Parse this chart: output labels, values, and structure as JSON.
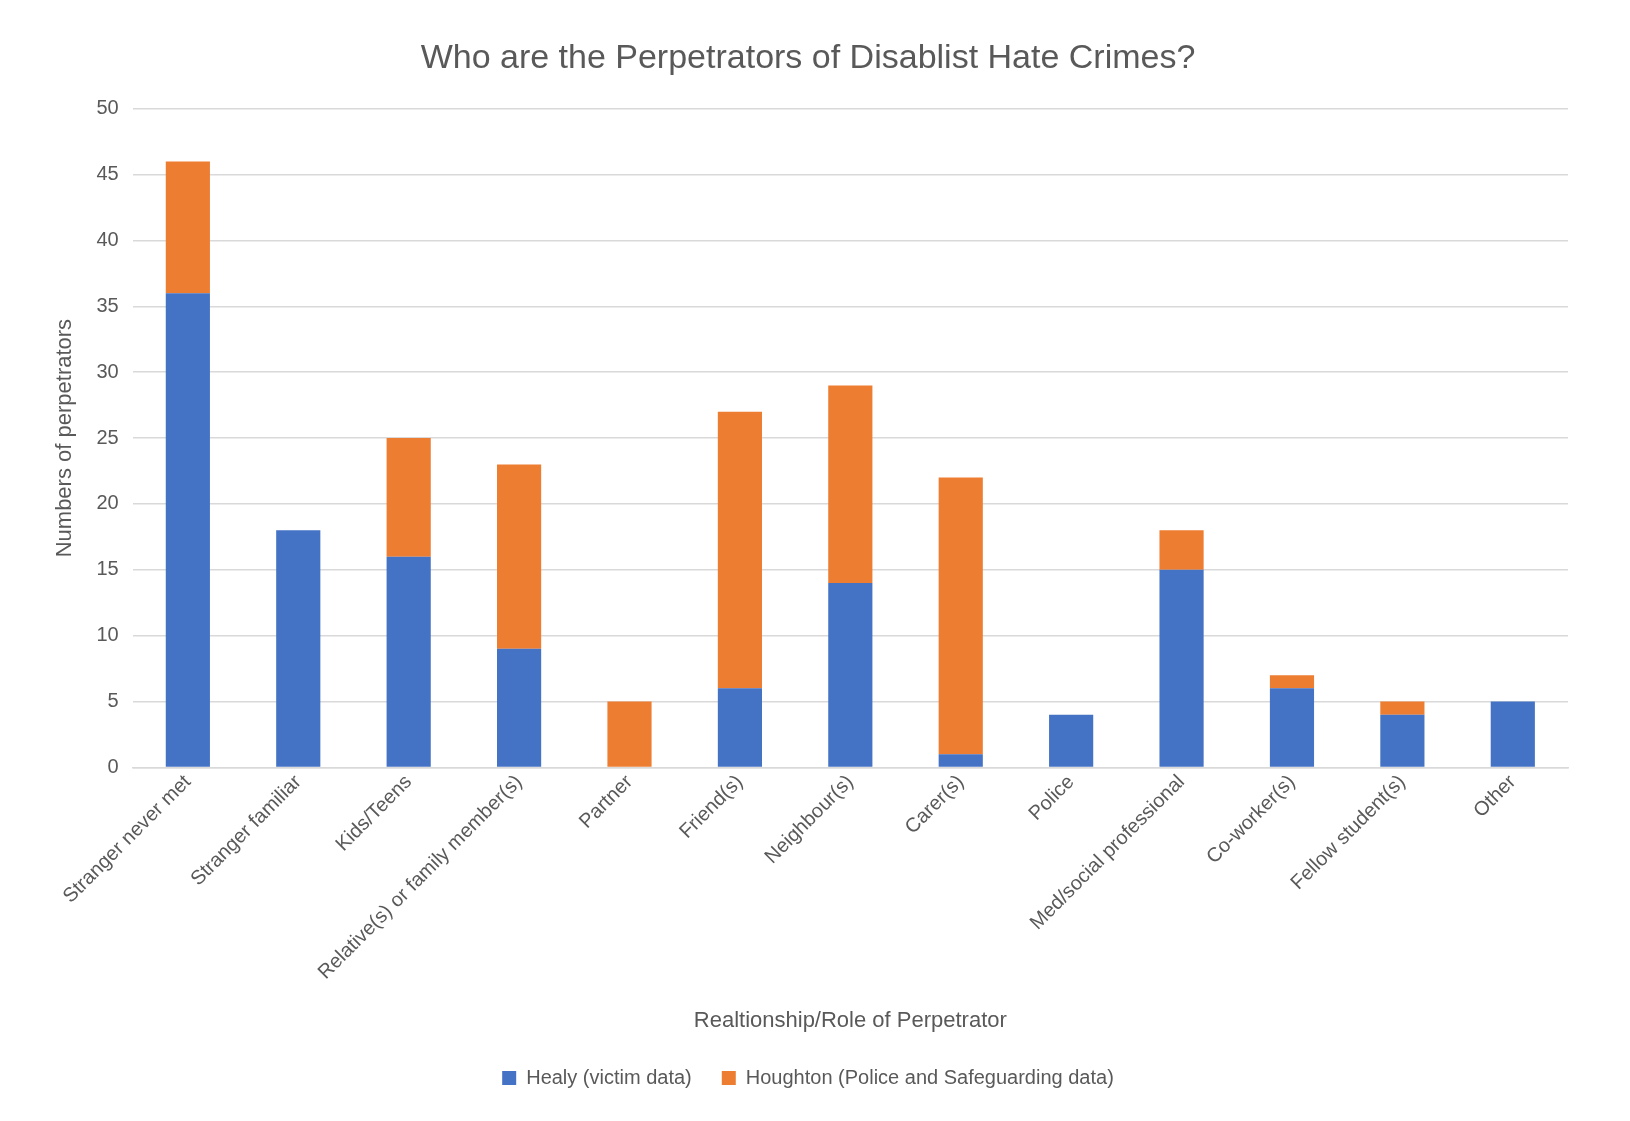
{
  "chart_data": {
    "type": "bar",
    "title": "Who are the Perpetrators of Disablist Hate Crimes?",
    "xlabel": "Realtionship/Role of Perpetrator",
    "ylabel": "Numbers of perpetrators",
    "categories": [
      "Stranger never met",
      "Stranger familiar",
      "Kids/Teens",
      "Relative(s) or family member(s)",
      "Partner",
      "Friend(s)",
      "Neighbour(s)",
      "Carer(s)",
      "Police",
      "Med/social professional",
      "Co-worker(s)",
      "Fellow student(s)",
      "Other"
    ],
    "stacked": true,
    "series": [
      {
        "name": "Healy (victim data)",
        "color": "#4472c4",
        "values": [
          36,
          18,
          16,
          9,
          0,
          6,
          14,
          1,
          4,
          15,
          6,
          4,
          5
        ]
      },
      {
        "name": "Houghton (Police and Safeguarding data)",
        "color": "#ed7d31",
        "values": [
          10,
          0,
          9,
          14,
          5,
          21,
          15,
          21,
          0,
          3,
          1,
          1,
          0
        ]
      }
    ],
    "ylim": [
      0,
      50
    ],
    "yticks": [
      0,
      5,
      10,
      15,
      20,
      25,
      30,
      35,
      40,
      45,
      50
    ],
    "grid": "y",
    "legend": "bottom"
  }
}
